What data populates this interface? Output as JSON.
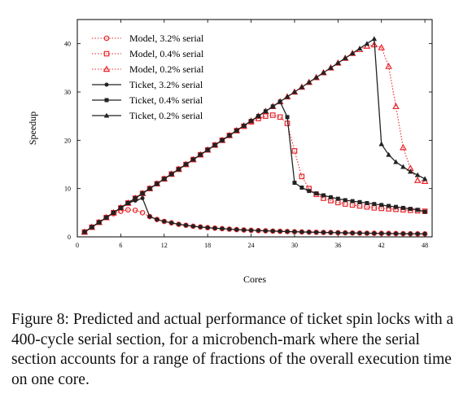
{
  "chart_data": {
    "type": "line",
    "xlabel": "Cores",
    "ylabel": "Speedup",
    "xlim": [
      0,
      49
    ],
    "ylim": [
      0,
      45
    ],
    "xticks": [
      0,
      6,
      12,
      18,
      24,
      30,
      36,
      42,
      48
    ],
    "yticks": [
      0,
      10,
      20,
      30,
      40
    ],
    "grid": false,
    "legend_position": "top-left",
    "series": [
      {
        "name": "Model, 3.2% serial",
        "style": "dotted",
        "marker": "circle",
        "color": "#e8262b",
        "x": [
          1,
          2,
          3,
          4,
          5,
          6,
          7,
          8,
          9,
          10,
          11,
          12,
          13,
          14,
          15,
          16,
          17,
          18,
          19,
          20,
          21,
          22,
          23,
          24,
          25,
          26,
          27,
          28,
          29,
          30,
          31,
          32,
          33,
          34,
          35,
          36,
          37,
          38,
          39,
          40,
          41,
          42,
          43,
          44,
          45,
          46,
          47,
          48
        ],
        "y": [
          1,
          2,
          3,
          4,
          4.8,
          5.3,
          5.6,
          5.5,
          5,
          4.2,
          3.6,
          3.2,
          2.9,
          2.6,
          2.4,
          2.2,
          2.05,
          1.9,
          1.8,
          1.7,
          1.6,
          1.5,
          1.43,
          1.36,
          1.3,
          1.25,
          1.2,
          1.15,
          1.1,
          1.06,
          1.02,
          0.98,
          0.95,
          0.92,
          0.89,
          0.86,
          0.83,
          0.8,
          0.78,
          0.76,
          0.74,
          0.72,
          0.7,
          0.68,
          0.66,
          0.64,
          0.63,
          0.62
        ]
      },
      {
        "name": "Model, 0.4% serial",
        "style": "dotted",
        "marker": "square",
        "color": "#e8262b",
        "x": [
          1,
          2,
          3,
          4,
          5,
          6,
          7,
          8,
          9,
          10,
          11,
          12,
          13,
          14,
          15,
          16,
          17,
          18,
          19,
          20,
          21,
          22,
          23,
          24,
          25,
          26,
          27,
          28,
          29,
          30,
          31,
          32,
          33,
          34,
          35,
          36,
          37,
          38,
          39,
          40,
          41,
          42,
          43,
          44,
          45,
          46,
          47,
          48
        ],
        "y": [
          1,
          2,
          3,
          4,
          5,
          6,
          7,
          8,
          9,
          10,
          11,
          12,
          13,
          14,
          15,
          16,
          17,
          18,
          19,
          20,
          21,
          22,
          22.9,
          23.8,
          24.5,
          25,
          25.2,
          24.8,
          23.5,
          17.8,
          12.5,
          10,
          8.8,
          8,
          7.5,
          7.1,
          6.8,
          6.6,
          6.4,
          6.2,
          6,
          5.9,
          5.8,
          5.7,
          5.6,
          5.5,
          5.4,
          5.3
        ]
      },
      {
        "name": "Model, 0.2% serial",
        "style": "dotted",
        "marker": "triangle",
        "color": "#e8262b",
        "x": [
          1,
          2,
          3,
          4,
          5,
          6,
          7,
          8,
          9,
          10,
          11,
          12,
          13,
          14,
          15,
          16,
          17,
          18,
          19,
          20,
          21,
          22,
          23,
          24,
          25,
          26,
          27,
          28,
          29,
          30,
          31,
          32,
          33,
          34,
          35,
          36,
          37,
          38,
          39,
          40,
          41,
          42,
          43,
          44,
          45,
          46,
          47,
          48
        ],
        "y": [
          1,
          2,
          3,
          4,
          5,
          6,
          7,
          8,
          9,
          10,
          11,
          12,
          13,
          14,
          15,
          16,
          17,
          18,
          19,
          20,
          21,
          22,
          23,
          24,
          25,
          26,
          27,
          28,
          29,
          30,
          31,
          32,
          33,
          34,
          35,
          36,
          37,
          38,
          38.8,
          39.5,
          39.8,
          39.2,
          35.3,
          27,
          18.5,
          14.2,
          11.7,
          11.5
        ]
      },
      {
        "name": "Ticket, 3.2% serial",
        "style": "solid",
        "marker": "circle",
        "color": "#222222",
        "x": [
          1,
          2,
          3,
          4,
          5,
          6,
          7,
          8,
          9,
          10,
          11,
          12,
          13,
          14,
          15,
          16,
          17,
          18,
          19,
          20,
          21,
          22,
          23,
          24,
          25,
          26,
          27,
          28,
          29,
          30,
          31,
          32,
          33,
          34,
          35,
          36,
          37,
          38,
          39,
          40,
          41,
          42,
          43,
          44,
          45,
          46,
          47,
          48
        ],
        "y": [
          1,
          2,
          3,
          4,
          5,
          6,
          7,
          7.5,
          8,
          4.2,
          3.6,
          3.2,
          2.9,
          2.6,
          2.4,
          2.2,
          2.05,
          1.9,
          1.8,
          1.7,
          1.6,
          1.5,
          1.43,
          1.36,
          1.3,
          1.25,
          1.2,
          1.15,
          1.1,
          1.06,
          1.02,
          0.98,
          0.95,
          0.92,
          0.89,
          0.86,
          0.83,
          0.8,
          0.78,
          0.76,
          0.74,
          0.72,
          0.7,
          0.68,
          0.66,
          0.64,
          0.63,
          0.62
        ]
      },
      {
        "name": "Ticket, 0.4% serial",
        "style": "solid",
        "marker": "square",
        "color": "#222222",
        "x": [
          1,
          2,
          3,
          4,
          5,
          6,
          7,
          8,
          9,
          10,
          11,
          12,
          13,
          14,
          15,
          16,
          17,
          18,
          19,
          20,
          21,
          22,
          23,
          24,
          25,
          26,
          27,
          28,
          29,
          30,
          31,
          32,
          33,
          34,
          35,
          36,
          37,
          38,
          39,
          40,
          41,
          42,
          43,
          44,
          45,
          46,
          47,
          48
        ],
        "y": [
          1,
          2,
          3,
          4,
          5,
          6,
          7,
          8,
          9,
          10,
          11,
          12,
          13,
          14,
          15,
          16,
          17,
          18,
          19,
          20,
          21,
          22,
          23,
          24,
          25,
          26,
          27,
          28,
          24.8,
          11.2,
          10.2,
          9.5,
          9,
          8.6,
          8.2,
          7.9,
          7.6,
          7.4,
          7.2,
          7,
          6.8,
          6.6,
          6.4,
          6.2,
          6,
          5.8,
          5.6,
          5.2
        ]
      },
      {
        "name": "Ticket, 0.2% serial",
        "style": "solid",
        "marker": "triangle",
        "color": "#222222",
        "x": [
          1,
          2,
          3,
          4,
          5,
          6,
          7,
          8,
          9,
          10,
          11,
          12,
          13,
          14,
          15,
          16,
          17,
          18,
          19,
          20,
          21,
          22,
          23,
          24,
          25,
          26,
          27,
          28,
          29,
          30,
          31,
          32,
          33,
          34,
          35,
          36,
          37,
          38,
          39,
          40,
          41,
          42,
          43,
          44,
          45,
          46,
          47,
          48
        ],
        "y": [
          1,
          2,
          3,
          4,
          5,
          6,
          7,
          8,
          9,
          10,
          11,
          12,
          13,
          14,
          15,
          16,
          17,
          18,
          19,
          20,
          21,
          22,
          23,
          24,
          25,
          26,
          27,
          28,
          29,
          30,
          31,
          32,
          33,
          34,
          35,
          36,
          37,
          38,
          39,
          40,
          41,
          19.2,
          17,
          15.5,
          14.5,
          13.5,
          12.8,
          12
        ]
      }
    ]
  },
  "caption": "Figure 8: Predicted and actual performance of ticket spin locks with a 400-cycle serial section, for a microbench-mark where the serial section accounts for a range of fractions of the overall execution time on one core."
}
